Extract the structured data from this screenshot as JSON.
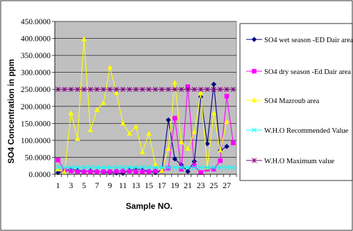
{
  "chart_data": {
    "type": "line",
    "xlabel": "Sample NO.",
    "ylabel": "SO4 Concentration in ppm",
    "ylim": [
      0,
      450
    ],
    "yticks": [
      "0.0000",
      "50.0000",
      "100.0000",
      "150.0000",
      "200.0000",
      "250.0000",
      "300.0000",
      "350.0000",
      "400.0000",
      "450.0000"
    ],
    "xtick_labels": [
      "1",
      "3",
      "5",
      "7",
      "9",
      "11",
      "13",
      "15",
      "17",
      "19",
      "21",
      "23",
      "25",
      "27"
    ],
    "x": [
      1,
      2,
      3,
      4,
      5,
      6,
      7,
      8,
      9,
      10,
      11,
      12,
      13,
      14,
      15,
      16,
      17,
      18,
      19,
      20,
      21,
      22,
      23,
      24,
      25,
      26,
      27,
      28
    ],
    "plot_background": "#c0c0c0",
    "grid": true,
    "legend_position": "right",
    "series": [
      {
        "name": "SO4 wet season -ED Dair area",
        "color": "#000080",
        "marker": "diamond",
        "values": [
          5,
          10,
          15,
          12,
          8,
          10,
          8,
          6,
          5,
          4,
          3,
          12,
          15,
          14,
          8,
          5,
          10,
          160,
          45,
          28,
          8,
          38,
          228,
          90,
          265,
          70,
          82,
          null
        ]
      },
      {
        "name": "SO4 dry season -Ed Dair area",
        "color": "#ff00ff",
        "marker": "square",
        "values": [
          42,
          12,
          10,
          8,
          8,
          8,
          7,
          8,
          8,
          9,
          10,
          9,
          8,
          8,
          8,
          10,
          10,
          18,
          165,
          15,
          258,
          25,
          5,
          15,
          15,
          40,
          230,
          92
        ]
      },
      {
        "name": "SO4 Mazroub area",
        "color": "#ffff00",
        "marker": "triangle",
        "values": [
          15,
          5,
          180,
          105,
          398,
          130,
          190,
          210,
          315,
          240,
          150,
          120,
          140,
          65,
          120,
          30,
          10,
          75,
          270,
          95,
          75,
          125,
          240,
          20,
          180,
          70,
          155,
          null
        ]
      },
      {
        "name": "W.H.O Recommended Value",
        "color": "#00ffff",
        "marker": "asterisk",
        "values": [
          20,
          20,
          20,
          20,
          20,
          20,
          20,
          20,
          20,
          20,
          20,
          20,
          20,
          20,
          20,
          20,
          20,
          20,
          20,
          20,
          20,
          20,
          20,
          20,
          20,
          20,
          20,
          20
        ]
      },
      {
        "name": "W.H.O Maximum value",
        "color": "#800080",
        "marker": "star",
        "values": [
          250,
          250,
          250,
          250,
          250,
          250,
          250,
          250,
          250,
          250,
          250,
          250,
          250,
          250,
          250,
          250,
          250,
          250,
          250,
          250,
          250,
          250,
          250,
          250,
          250,
          250,
          250,
          250
        ]
      }
    ]
  }
}
